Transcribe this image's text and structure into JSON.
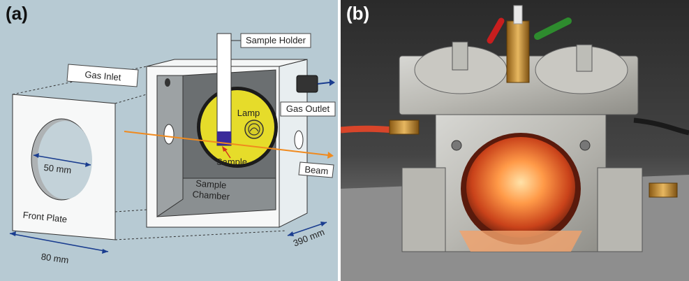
{
  "panels": {
    "a": {
      "letter": "(a)"
    },
    "b": {
      "letter": "(b)"
    }
  },
  "labels": {
    "sample_holder": "Sample Holder",
    "gas_inlet": "Gas Inlet",
    "gas_outlet": "Gas Outlet",
    "lamp": "Lamp",
    "sample": "Sample",
    "beam": "Beam",
    "sample_chamber_line1": "Sample",
    "sample_chamber_line2": "Chamber",
    "front_plate": "Front Plate",
    "dim_50": "50 mm",
    "dim_80": "80 mm",
    "dim_390": "390 mm"
  },
  "colors": {
    "background_a": "#b7cad3",
    "lamp_yellow": "#e6dc2a",
    "beam_orange": "#f08a1e",
    "arrow_blue": "#1a3d8f",
    "sample_blue": "#3a2a9a"
  }
}
